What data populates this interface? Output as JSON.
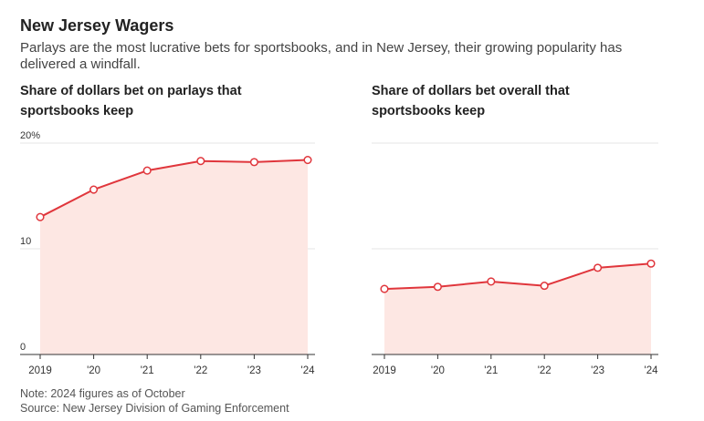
{
  "header": {
    "title": "New Jersey Wagers",
    "subtitle": "Parlays are the most lucrative bets for sportsbooks, and in New Jersey, their growing popularity has delivered a windfall."
  },
  "footer": {
    "note": "Note: 2024 figures as of October",
    "source": "Source: New Jersey Division of Gaming Enforcement"
  },
  "colors": {
    "line": "#e0363c",
    "fill": "#fde7e3",
    "grid": "#e6e6e6",
    "axis": "#333333"
  },
  "chart_data": [
    {
      "type": "area",
      "title": "Share of dollars bet on parlays that sportsbooks keep",
      "categories": [
        "2019",
        "'20",
        "'21",
        "'22",
        "'23",
        "'24"
      ],
      "values": [
        13.0,
        15.6,
        17.4,
        18.3,
        18.2,
        18.4
      ],
      "ylim": [
        0,
        20
      ],
      "yticks": [
        0,
        10,
        20
      ],
      "ytick_labels": [
        "0",
        "10",
        "20%"
      ],
      "xlabel": "",
      "ylabel": ""
    },
    {
      "type": "area",
      "title": "Share of dollars bet overall that sportsbooks keep",
      "categories": [
        "2019",
        "'20",
        "'21",
        "'22",
        "'23",
        "'24"
      ],
      "values": [
        6.2,
        6.4,
        6.9,
        6.5,
        8.2,
        8.6
      ],
      "ylim": [
        0,
        20
      ],
      "yticks": [
        0,
        10,
        20
      ],
      "ytick_labels": [],
      "xlabel": "",
      "ylabel": ""
    }
  ]
}
